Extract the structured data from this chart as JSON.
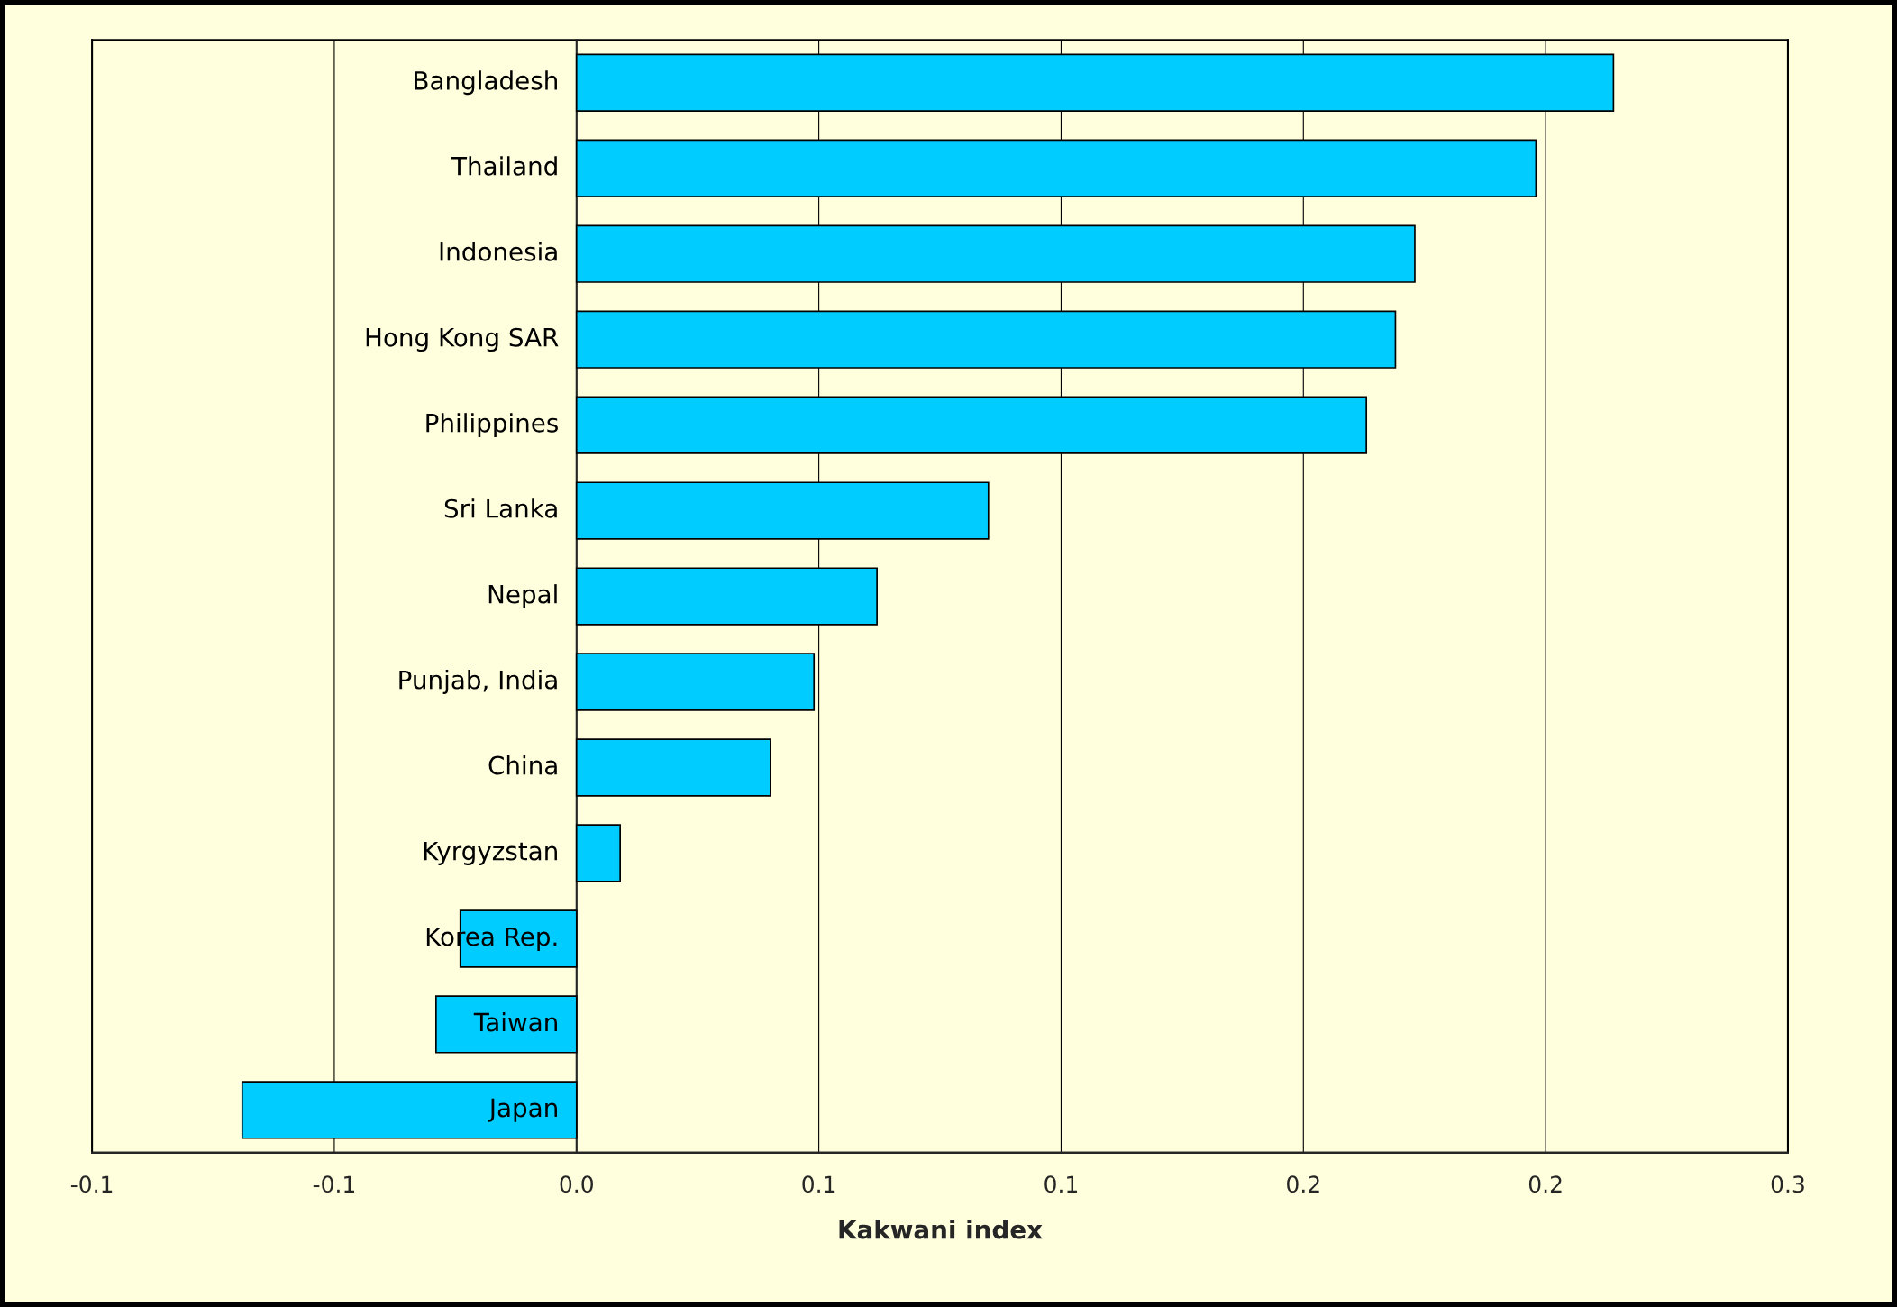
{
  "chart_data": {
    "type": "bar",
    "orientation": "horizontal",
    "xlabel": "Kakwani index",
    "categories": [
      "Bangladesh",
      "Thailand",
      "Indonesia",
      "Hong Kong SAR",
      "Philippines",
      "Sri Lanka",
      "Nepal",
      "Punjab, India",
      "China",
      "Kyrgyzstan",
      "Korea Rep.",
      "Taiwan",
      "Japan"
    ],
    "values": [
      0.214,
      0.198,
      0.173,
      0.169,
      0.163,
      0.085,
      0.062,
      0.049,
      0.04,
      0.009,
      -0.024,
      -0.029,
      -0.069
    ],
    "color": "#00ccff",
    "xlim": [
      -0.1,
      0.25
    ],
    "xticks": [
      {
        "value": -0.1,
        "label": "-0.1"
      },
      {
        "value": -0.05,
        "label": "-0.1"
      },
      {
        "value": 0,
        "label": "0.0"
      },
      {
        "value": 0.05,
        "label": "0.1"
      },
      {
        "value": 0.1,
        "label": "0.1"
      },
      {
        "value": 0.15,
        "label": "0.2"
      },
      {
        "value": 0.2,
        "label": "0.2"
      },
      {
        "value": 0.25,
        "label": "0.3"
      }
    ],
    "grid": "x"
  }
}
